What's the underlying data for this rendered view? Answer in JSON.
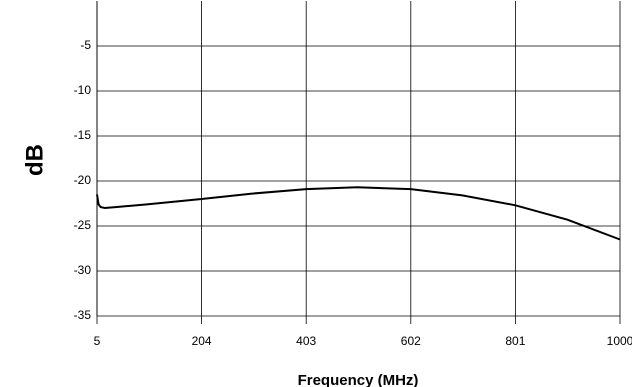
{
  "chart_data": {
    "type": "line",
    "x_label": "Frequency (MHz)",
    "y_label": "dB",
    "series": [
      {
        "color": "#000000",
        "x": [
          5,
          8,
          12,
          20,
          40,
          100,
          204,
          300,
          403,
          500,
          602,
          700,
          801,
          900,
          1000
        ],
        "values": [
          -21.5,
          -22.6,
          -22.9,
          -23.0,
          -22.9,
          -22.6,
          -22.0,
          -21.4,
          -20.9,
          -20.7,
          -20.9,
          -21.6,
          -22.7,
          -24.3,
          -26.5
        ]
      }
    ],
    "xlim": [
      5,
      1000
    ],
    "xticks": [
      5,
      204,
      403,
      602,
      801,
      1000
    ],
    "ylim": [
      -35,
      0
    ],
    "yticks": [
      -35,
      -30,
      -25,
      -20,
      -15,
      -10,
      -5
    ],
    "grid": true
  }
}
